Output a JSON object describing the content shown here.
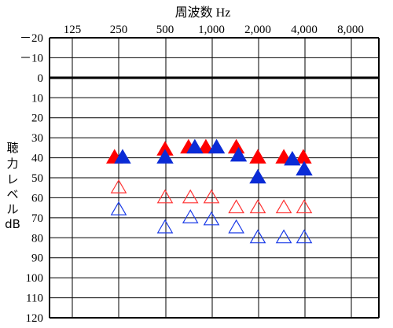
{
  "chart_data": {
    "type": "scatter",
    "title": "周波数 Hz",
    "xlabel": "周波数 Hz",
    "ylabel": "聴力レベル dB",
    "ylabel_lines": [
      "聴",
      "力",
      "レ",
      "ベ",
      "ル",
      "dB"
    ],
    "x_ticks": [
      {
        "freq": 125,
        "label": "125"
      },
      {
        "freq": 250,
        "label": "250"
      },
      {
        "freq": 500,
        "label": "500"
      },
      {
        "freq": 1000,
        "label": "1,000"
      },
      {
        "freq": 2000,
        "label": "2,000"
      },
      {
        "freq": 4000,
        "label": "4,000"
      },
      {
        "freq": 8000,
        "label": "8,000"
      }
    ],
    "y_ticks": [
      {
        "value": -20,
        "label": "－20"
      },
      {
        "value": -10,
        "label": "－10"
      },
      {
        "value": 0,
        "label": "0"
      },
      {
        "value": 10,
        "label": "10"
      },
      {
        "value": 20,
        "label": "20"
      },
      {
        "value": 30,
        "label": "30"
      },
      {
        "value": 40,
        "label": "40"
      },
      {
        "value": 50,
        "label": "50"
      },
      {
        "value": 60,
        "label": "60"
      },
      {
        "value": 70,
        "label": "70"
      },
      {
        "value": 80,
        "label": "80"
      },
      {
        "value": 90,
        "label": "90"
      },
      {
        "value": 100,
        "label": "100"
      },
      {
        "value": 110,
        "label": "110"
      },
      {
        "value": 120,
        "label": "120"
      }
    ],
    "x_scale": "log2",
    "xlim": [
      125,
      8000
    ],
    "ylim": [
      -20,
      120
    ],
    "y_inverted": true,
    "grid": true,
    "reference_line": 0,
    "series": [
      {
        "marker": "filled-triangle",
        "color": "#ff0000",
        "points": [
          [
            235,
            40
          ],
          [
            500,
            36
          ],
          [
            710,
            35
          ],
          [
            920,
            35
          ],
          [
            1450,
            35
          ],
          [
            2000,
            40
          ],
          [
            2950,
            40
          ],
          [
            3950,
            40
          ]
        ]
      },
      {
        "marker": "filled-triangle",
        "color": "#0a2bd6",
        "points": [
          [
            265,
            40
          ],
          [
            500,
            40
          ],
          [
            780,
            35
          ],
          [
            1080,
            35
          ],
          [
            1500,
            39
          ],
          [
            2000,
            50
          ],
          [
            3350,
            41
          ],
          [
            4000,
            46
          ]
        ]
      },
      {
        "marker": "open-triangle",
        "color": "#ff3333",
        "points": [
          [
            250,
            55
          ],
          [
            500,
            60
          ],
          [
            730,
            60
          ],
          [
            1000,
            60
          ],
          [
            1450,
            65
          ],
          [
            2000,
            65
          ],
          [
            2950,
            65
          ],
          [
            4000,
            65
          ]
        ]
      },
      {
        "marker": "open-triangle",
        "color": "#1a3be8",
        "points": [
          [
            250,
            66
          ],
          [
            500,
            75
          ],
          [
            730,
            70
          ],
          [
            1000,
            71
          ],
          [
            1450,
            75
          ],
          [
            2000,
            80
          ],
          [
            2950,
            80
          ],
          [
            4000,
            80
          ]
        ]
      }
    ]
  }
}
